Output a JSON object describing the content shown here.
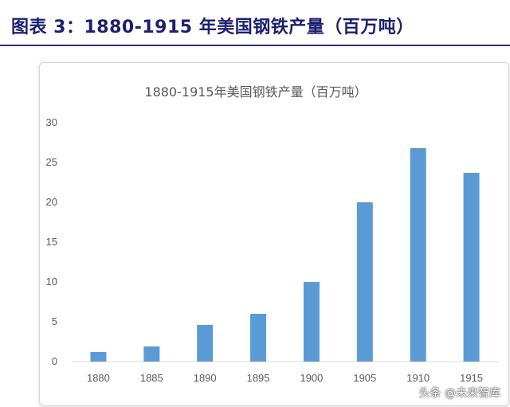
{
  "figure": {
    "caption": "图表 3：1880-1915 年美国钢铁产量（百万吨）"
  },
  "watermark": "头条 @未来智库",
  "colors": {
    "bar": "#5b9bd5",
    "axis": "#d9d9d9",
    "text": "#595959",
    "caption": "#1b1f6e"
  },
  "chart_data": {
    "type": "bar",
    "title": "1880-1915年美国钢铁产量（百万吨）",
    "xlabel": "",
    "ylabel": "",
    "categories": [
      "1880",
      "1885",
      "1890",
      "1895",
      "1900",
      "1905",
      "1910",
      "1915"
    ],
    "values": [
      1.2,
      1.9,
      4.6,
      6.0,
      10.0,
      20.0,
      26.8,
      23.7
    ],
    "ylim": [
      0,
      30
    ],
    "yticks": [
      0,
      5,
      10,
      15,
      20,
      25,
      30
    ],
    "grid": false,
    "legend": "none"
  }
}
